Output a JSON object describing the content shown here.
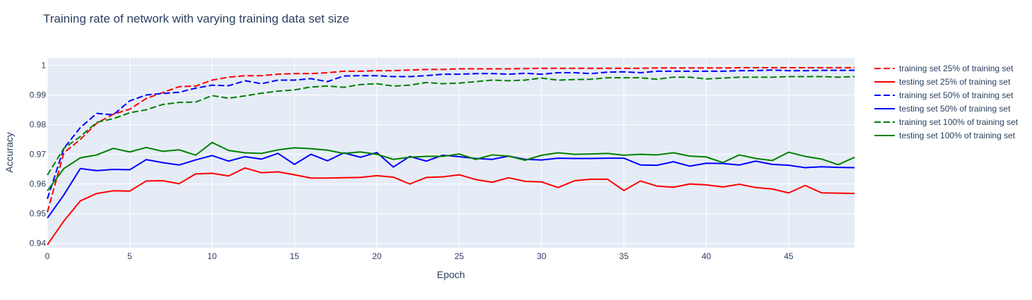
{
  "chart_data": {
    "type": "line",
    "title": "Training rate of network with varying training data set size",
    "xlabel": "Epoch",
    "ylabel": "Accuracy",
    "xlim": [
      0,
      49
    ],
    "ylim": [
      0.9385,
      1.0025
    ],
    "x_ticks": [
      0,
      5,
      10,
      15,
      20,
      25,
      30,
      35,
      40,
      45
    ],
    "y_ticks": [
      0.94,
      0.95,
      0.96,
      0.97,
      0.98,
      0.99,
      1
    ],
    "x_tick_labels": [
      "0",
      "5",
      "10",
      "15",
      "20",
      "25",
      "30",
      "35",
      "40",
      "45"
    ],
    "y_tick_labels": [
      "0.94",
      "0.95",
      "0.96",
      "0.97",
      "0.98",
      "0.99",
      "1"
    ],
    "grid": true,
    "legend_position": "right",
    "background": "#e5ecf6",
    "x": [
      0,
      1,
      2,
      3,
      4,
      5,
      6,
      7,
      8,
      9,
      10,
      11,
      12,
      13,
      14,
      15,
      16,
      17,
      18,
      19,
      20,
      21,
      22,
      23,
      24,
      25,
      26,
      27,
      28,
      29,
      30,
      31,
      32,
      33,
      34,
      35,
      36,
      37,
      38,
      39,
      40,
      41,
      42,
      43,
      44,
      45,
      46,
      47,
      48,
      49
    ],
    "series": [
      {
        "name": "training set 25% of training set",
        "color": "#ff0000",
        "dash": "dash",
        "values": [
          0.9505,
          0.9705,
          0.975,
          0.9805,
          0.9835,
          0.9852,
          0.9888,
          0.9908,
          0.9928,
          0.993,
          0.995,
          0.996,
          0.9965,
          0.9965,
          0.997,
          0.9972,
          0.9972,
          0.9975,
          0.998,
          0.998,
          0.9982,
          0.9982,
          0.9984,
          0.9986,
          0.9986,
          0.9988,
          0.9988,
          0.9988,
          0.9988,
          0.9989,
          0.999,
          0.999,
          0.999,
          0.999,
          0.999,
          0.999,
          0.999,
          0.9991,
          0.9991,
          0.9991,
          0.9991,
          0.9991,
          0.9992,
          0.9992,
          0.9992,
          0.9992,
          0.9992,
          0.9992,
          0.9992,
          0.9992
        ]
      },
      {
        "name": "testing set 25% of training set",
        "color": "#ff0000",
        "dash": "solid",
        "values": [
          0.9395,
          0.9475,
          0.9543,
          0.9568,
          0.9577,
          0.9576,
          0.961,
          0.9611,
          0.9601,
          0.9634,
          0.9636,
          0.9627,
          0.9654,
          0.9638,
          0.9641,
          0.9631,
          0.962,
          0.962,
          0.9621,
          0.9622,
          0.9628,
          0.9623,
          0.96,
          0.9622,
          0.9624,
          0.9631,
          0.9615,
          0.9606,
          0.9621,
          0.9609,
          0.9607,
          0.9588,
          0.9611,
          0.9616,
          0.9616,
          0.9578,
          0.961,
          0.9593,
          0.9589,
          0.96,
          0.9597,
          0.959,
          0.9599,
          0.9588,
          0.9583,
          0.957,
          0.9595,
          0.957,
          0.9569,
          0.9568
        ]
      },
      {
        "name": "training set 50% of training set",
        "color": "#0000ff",
        "dash": "dash",
        "values": [
          0.955,
          0.972,
          0.979,
          0.9838,
          0.9833,
          0.988,
          0.99,
          0.9905,
          0.9909,
          0.9923,
          0.9933,
          0.9931,
          0.9948,
          0.9938,
          0.995,
          0.995,
          0.9955,
          0.9945,
          0.9964,
          0.9965,
          0.9965,
          0.9962,
          0.9962,
          0.9965,
          0.997,
          0.997,
          0.9972,
          0.9972,
          0.997,
          0.9973,
          0.997,
          0.9975,
          0.9975,
          0.9972,
          0.9977,
          0.9978,
          0.9975,
          0.998,
          0.998,
          0.998,
          0.998,
          0.998,
          0.9982,
          0.9982,
          0.9984,
          0.9982,
          0.9982,
          0.9983,
          0.9983,
          0.9983
        ]
      },
      {
        "name": "testing set 50% of training set",
        "color": "#0000ff",
        "dash": "solid",
        "values": [
          0.9485,
          0.9563,
          0.9652,
          0.9645,
          0.9649,
          0.9648,
          0.9682,
          0.9672,
          0.9664,
          0.9681,
          0.9696,
          0.9677,
          0.9692,
          0.9684,
          0.9703,
          0.9666,
          0.97,
          0.9678,
          0.9705,
          0.969,
          0.9706,
          0.9657,
          0.9693,
          0.9677,
          0.9697,
          0.9692,
          0.9686,
          0.9683,
          0.9694,
          0.9683,
          0.9681,
          0.9687,
          0.9686,
          0.9686,
          0.9687,
          0.9687,
          0.9664,
          0.9663,
          0.9675,
          0.966,
          0.967,
          0.9669,
          0.9664,
          0.9677,
          0.9666,
          0.9663,
          0.9655,
          0.9658,
          0.9656,
          0.9655
        ]
      },
      {
        "name": "training set 100% of training set",
        "color": "#008000",
        "dash": "dash",
        "values": [
          0.963,
          0.972,
          0.976,
          0.9808,
          0.982,
          0.984,
          0.985,
          0.9868,
          0.9875,
          0.9876,
          0.9898,
          0.9889,
          0.9897,
          0.9906,
          0.9913,
          0.9917,
          0.9927,
          0.993,
          0.9926,
          0.9935,
          0.9938,
          0.993,
          0.9933,
          0.9942,
          0.9938,
          0.994,
          0.9945,
          0.995,
          0.9948,
          0.995,
          0.9957,
          0.995,
          0.9952,
          0.9953,
          0.9958,
          0.9958,
          0.9958,
          0.9953,
          0.996,
          0.996,
          0.9954,
          0.9957,
          0.996,
          0.996,
          0.996,
          0.9962,
          0.9962,
          0.9962,
          0.996,
          0.9962
        ]
      },
      {
        "name": "testing set 100% of training set",
        "color": "#008000",
        "dash": "solid",
        "values": [
          0.9577,
          0.9652,
          0.9688,
          0.9698,
          0.972,
          0.9708,
          0.9723,
          0.971,
          0.9715,
          0.9697,
          0.974,
          0.9713,
          0.9705,
          0.9703,
          0.9715,
          0.9722,
          0.9719,
          0.9714,
          0.9703,
          0.9708,
          0.97,
          0.9683,
          0.969,
          0.9693,
          0.9693,
          0.9701,
          0.9683,
          0.9698,
          0.9694,
          0.968,
          0.9697,
          0.9705,
          0.97,
          0.9701,
          0.9703,
          0.9697,
          0.97,
          0.9698,
          0.9705,
          0.9694,
          0.9691,
          0.9672,
          0.9698,
          0.9686,
          0.9679,
          0.9707,
          0.9693,
          0.9684,
          0.9665,
          0.969
        ]
      }
    ]
  }
}
